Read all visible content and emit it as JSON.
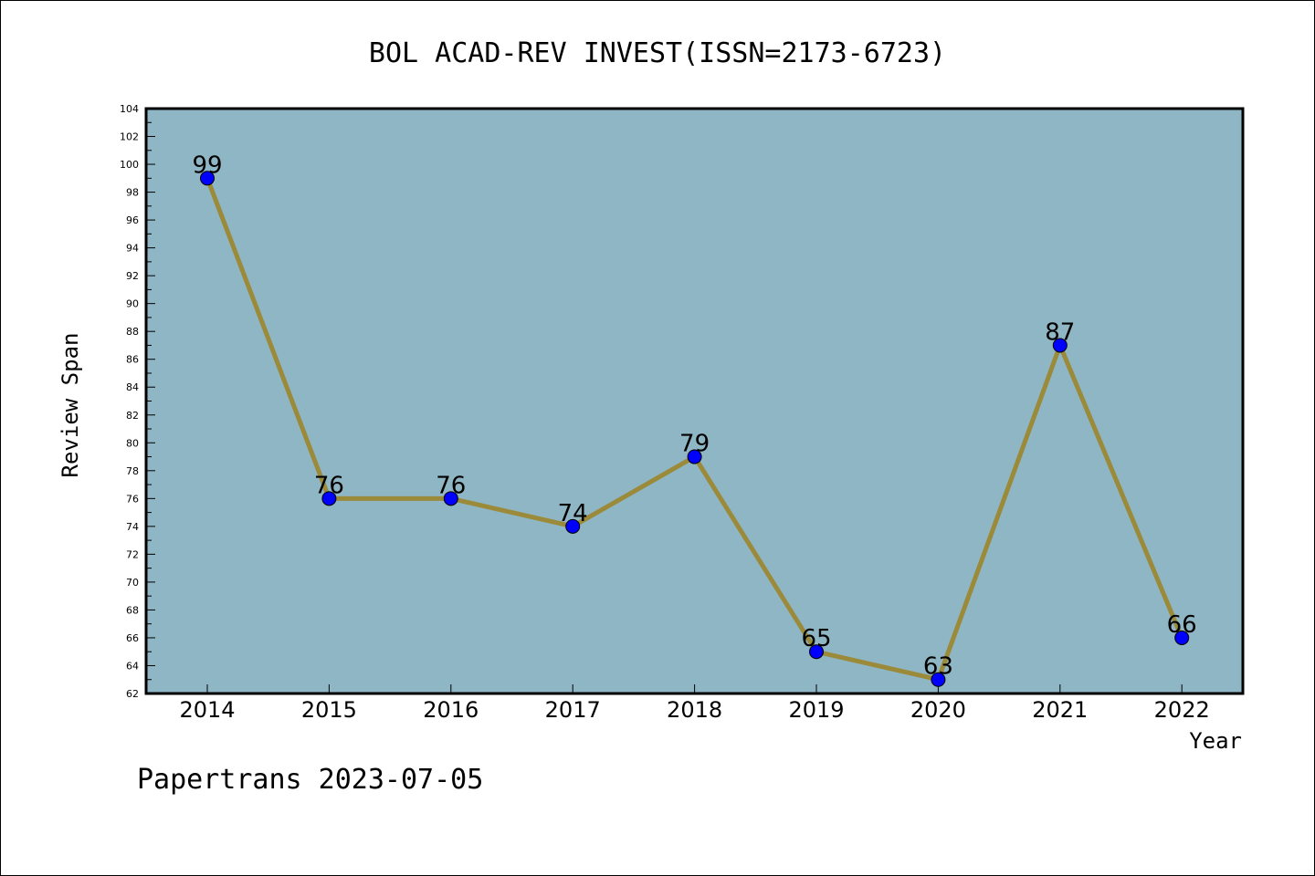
{
  "chart_data": {
    "type": "line",
    "title": "BOL ACAD-REV INVEST(ISSN=2173-6723)",
    "xlabel": "Year",
    "ylabel": "Review Span",
    "categories": [
      "2014",
      "2015",
      "2016",
      "2017",
      "2018",
      "2019",
      "2020",
      "2021",
      "2022"
    ],
    "series": [
      {
        "values": [
          99,
          76,
          76,
          74,
          79,
          65,
          63,
          87,
          66
        ]
      }
    ],
    "ylim": [
      62,
      104
    ],
    "ytick_step": 2,
    "grid": false,
    "data_labels": true,
    "colors": {
      "plot_background": "#8fb6c4",
      "line": "#9a8a3a",
      "marker": "#0000ff"
    }
  },
  "footer": {
    "watermark": "Papertrans 2023-07-05"
  }
}
